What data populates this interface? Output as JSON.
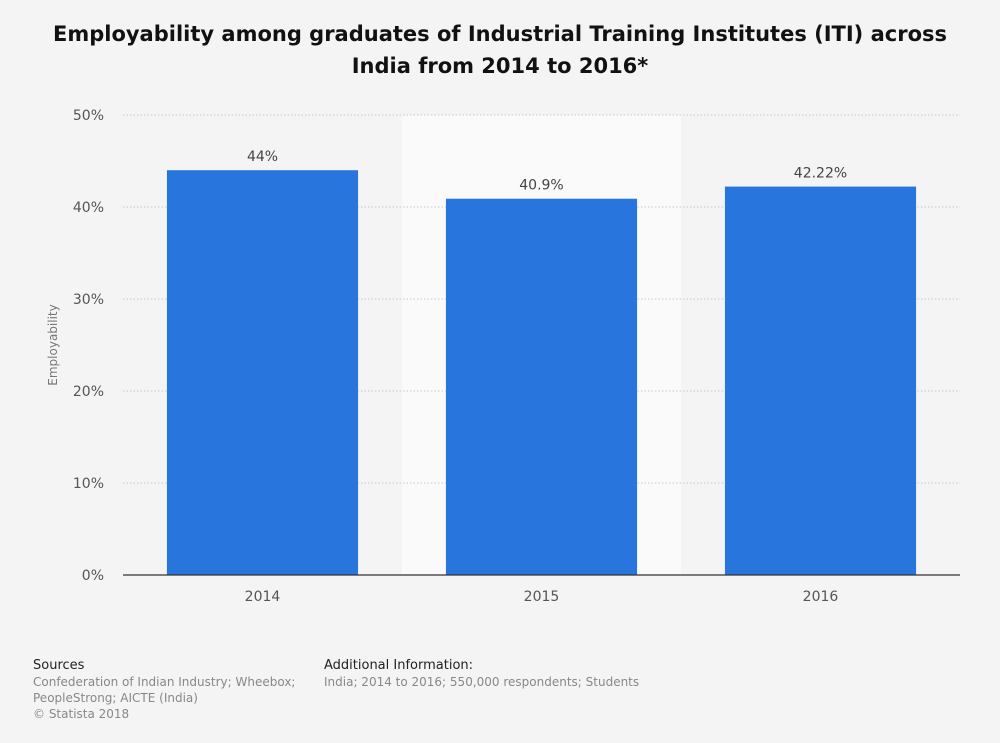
{
  "chart_data": {
    "type": "bar",
    "title": "Employability among graduates of Industrial Training Institutes (ITI) across India from 2014 to 2016*",
    "xlabel": "",
    "ylabel": "Employability",
    "categories": [
      "2014",
      "2015",
      "2016"
    ],
    "values": [
      44,
      40.9,
      42.22
    ],
    "data_labels": [
      "44%",
      "40.9%",
      "42.22%"
    ],
    "ylim": [
      0,
      50
    ],
    "yticks": [
      0,
      10,
      20,
      30,
      40,
      50
    ],
    "ytick_labels": [
      "0%",
      "10%",
      "20%",
      "30%",
      "40%",
      "50%"
    ],
    "grid": true,
    "legend": "none",
    "bar_color": "#2876dd",
    "highlight_band_color": "#fafafa"
  },
  "footer": {
    "sources_heading": "Sources",
    "sources_lines": [
      "Confederation of Indian Industry; Wheebox;",
      "PeopleStrong; AICTE (India)",
      "© Statista 2018"
    ],
    "info_heading": "Additional Information:",
    "info_lines": [
      "India; 2014 to 2016; 550,000 respondents; Students"
    ]
  }
}
